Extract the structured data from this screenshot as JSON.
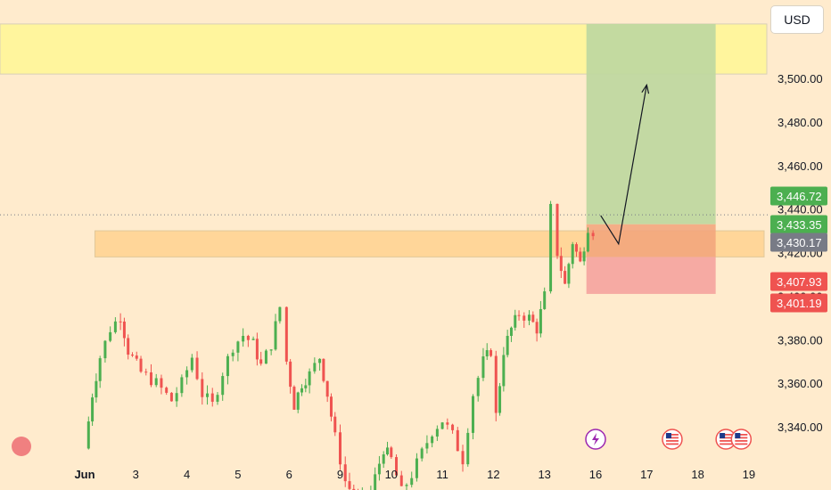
{
  "currency": "USD",
  "colors": {
    "background": "#ffebcd",
    "up": "#4caf50",
    "down": "#ef5350",
    "resistance_zone": "#fff59d",
    "support_zone": "#ffd699",
    "target_zone": "#c0d8a0",
    "stop_zone": "#f5a7a0"
  },
  "chart_data": {
    "type": "candlestick",
    "ylim": [
      3322,
      3532
    ],
    "x_range": [
      0.7,
      19.5
    ],
    "y_ticks": [
      "3,500.00",
      "3,480.00",
      "3,460.00",
      "3,440.00",
      "3,420.00",
      "3,400.00",
      "3,380.00",
      "3,360.00",
      "3,340.00"
    ],
    "y_tick_values": [
      3500,
      3480,
      3460,
      3440,
      3420,
      3400,
      3380,
      3360,
      3340
    ],
    "x_ticks": [
      {
        "label": "Jun",
        "x": 1.6
      },
      {
        "label": "3",
        "x": 2.6
      },
      {
        "label": "4",
        "x": 3.6
      },
      {
        "label": "5",
        "x": 4.6
      },
      {
        "label": "6",
        "x": 5.6
      },
      {
        "label": "9",
        "x": 6.6
      },
      {
        "label": "10",
        "x": 7.6
      },
      {
        "label": "11",
        "x": 8.6
      },
      {
        "label": "12",
        "x": 9.6
      },
      {
        "label": "13",
        "x": 10.6
      },
      {
        "label": "16",
        "x": 11.6
      },
      {
        "label": "17",
        "x": 12.6
      },
      {
        "label": "18",
        "x": 13.6
      },
      {
        "label": "19",
        "x": 14.6
      }
    ],
    "anchors": [
      [
        1.6,
        3330
      ],
      [
        1.75,
        3355
      ],
      [
        1.9,
        3372
      ],
      [
        2.1,
        3385
      ],
      [
        2.3,
        3391
      ],
      [
        2.45,
        3375
      ],
      [
        2.7,
        3365
      ],
      [
        3.0,
        3360
      ],
      [
        3.3,
        3352
      ],
      [
        3.5,
        3360
      ],
      [
        3.7,
        3372
      ],
      [
        3.9,
        3355
      ],
      [
        4.1,
        3350
      ],
      [
        4.3,
        3365
      ],
      [
        4.5,
        3377
      ],
      [
        4.7,
        3382
      ],
      [
        4.9,
        3378
      ],
      [
        5.05,
        3368
      ],
      [
        5.25,
        3378
      ],
      [
        5.42,
        3395
      ],
      [
        5.55,
        3370
      ],
      [
        5.7,
        3350
      ],
      [
        5.85,
        3360
      ],
      [
        6.0,
        3364
      ],
      [
        6.2,
        3372
      ],
      [
        6.35,
        3355
      ],
      [
        6.5,
        3335
      ],
      [
        6.7,
        3315
      ],
      [
        6.95,
        3305
      ],
      [
        7.2,
        3310
      ],
      [
        7.45,
        3330
      ],
      [
        7.6,
        3325
      ],
      [
        7.8,
        3310
      ],
      [
        8.0,
        3318
      ],
      [
        8.2,
        3328
      ],
      [
        8.4,
        3338
      ],
      [
        8.6,
        3343
      ],
      [
        8.8,
        3336
      ],
      [
        9.0,
        3325
      ],
      [
        9.2,
        3355
      ],
      [
        9.4,
        3370
      ],
      [
        9.55,
        3375
      ],
      [
        9.65,
        3345
      ],
      [
        9.8,
        3375
      ],
      [
        9.95,
        3385
      ],
      [
        10.1,
        3392
      ],
      [
        10.3,
        3390
      ],
      [
        10.45,
        3385
      ],
      [
        10.6,
        3400
      ],
      [
        10.72,
        3440
      ],
      [
        10.85,
        3420
      ],
      [
        11.0,
        3405
      ],
      [
        11.15,
        3425
      ],
      [
        11.3,
        3415
      ],
      [
        11.45,
        3432
      ],
      [
        11.55,
        3430
      ]
    ],
    "zones": {
      "resistance": {
        "y1": 3502,
        "y2": 3525
      },
      "support": {
        "y1": 3418,
        "y2": 3430
      },
      "target": {
        "y1": 3433,
        "y2": 3525
      },
      "stop": {
        "y1": 3401,
        "y2": 3418
      }
    },
    "projection_arrow": {
      "points": [
        [
          11.7,
          3437
        ],
        [
          12.05,
          3424
        ],
        [
          12.6,
          3497
        ]
      ]
    },
    "current_price": 3430,
    "price_tags": [
      {
        "label": "3,446.72",
        "value": 3446.72,
        "color": "#4caf50"
      },
      {
        "label": "3,433.35",
        "value": 3433.35,
        "color": "#4caf50"
      },
      {
        "label": "3,430.17",
        "value": 3430.17,
        "color": "#787b86"
      },
      {
        "label": "3,407.93",
        "value": 3407.93,
        "color": "#ef5350"
      },
      {
        "label": "3,401.19",
        "value": 3401.19,
        "color": "#ef5350"
      }
    ],
    "event_markers": [
      {
        "icon": "lightning-icon",
        "x": 11.6,
        "value": 3335
      },
      {
        "icon": "us-flag-icon",
        "x": 13.1,
        "value": 3335
      },
      {
        "icon": "us-flag-icon",
        "x": 14.15,
        "value": 3335
      },
      {
        "icon": "us-flag-icon",
        "x": 14.45,
        "value": 3335
      }
    ]
  }
}
